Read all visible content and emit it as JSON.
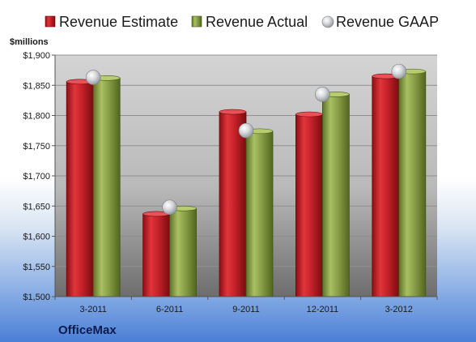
{
  "chart_data": {
    "type": "bar",
    "company": "OfficeMax",
    "unit_label": "$millions",
    "categories": [
      "3-2011",
      "6-2011",
      "9-2011",
      "12-2011",
      "3-2012"
    ],
    "series": [
      {
        "name": "Revenue Estimate",
        "type": "bar",
        "color": "#c8232a",
        "values": [
          1856,
          1637,
          1806,
          1802,
          1865
        ]
      },
      {
        "name": "Revenue Actual",
        "type": "bar",
        "color": "#8ca24a",
        "values": [
          1862,
          1646,
          1774,
          1835,
          1873
        ]
      },
      {
        "name": "Revenue GAAP",
        "type": "marker",
        "color": "#b9bcc2",
        "values": [
          1863,
          1648,
          1775,
          1835,
          1873
        ]
      }
    ],
    "ylim": [
      1500,
      1900
    ],
    "yticks": [
      1500,
      1550,
      1600,
      1650,
      1700,
      1750,
      1800,
      1850,
      1900
    ],
    "ytick_labels": [
      "$1,500",
      "$1,550",
      "$1,600",
      "$1,650",
      "$1,700",
      "$1,750",
      "$1,800",
      "$1,850",
      "$1,900"
    ],
    "grid": true,
    "legend_position": "top"
  }
}
